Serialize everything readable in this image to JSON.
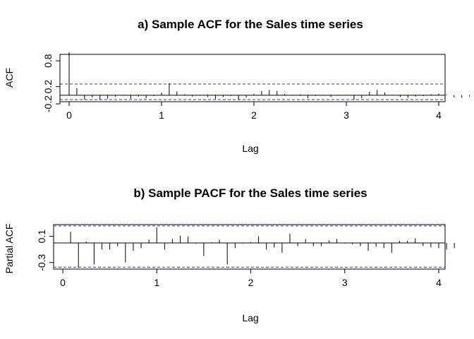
{
  "chart_data": [
    {
      "type": "bar",
      "title": "a) Sample ACF for the Sales time series",
      "xlabel": "Lag",
      "ylabel": "ACF",
      "xlim": [
        0,
        4
      ],
      "ylim": [
        -0.15,
        0.95
      ],
      "x_ticks": [
        0,
        1,
        2,
        3,
        4
      ],
      "x_tick_labels": [
        "0",
        "1",
        "2",
        "3",
        "4"
      ],
      "y_ticks": [
        -0.2,
        0.2,
        0.8
      ],
      "y_tick_labels": [
        "-0.2",
        "0.2",
        "0.8"
      ],
      "confidence_band": [
        -0.1,
        0.26
      ],
      "lag_step": 0.08333,
      "values": [
        1.0,
        0.17,
        -0.1,
        -0.05,
        -0.1,
        -0.08,
        -0.03,
        -0.01,
        -0.08,
        -0.03,
        -0.07,
        -0.02,
        0.06,
        0.28,
        0.09,
        0.02,
        -0.03,
        0.01,
        -0.04,
        -0.09,
        -0.04,
        -0.02,
        -0.1,
        -0.05,
        0.03,
        0.1,
        0.12,
        0.1,
        0.03,
        -0.01,
        -0.02,
        -0.07,
        -0.02,
        -0.01,
        -0.04,
        -0.01,
        0.01,
        -0.1,
        -0.07,
        0.08,
        0.12,
        0.07,
        0.01,
        -0.04,
        -0.06,
        -0.03,
        -0.02,
        0.02,
        0.04,
        0.02,
        -0.05,
        -0.06,
        -0.03,
        -0.01
      ]
    },
    {
      "type": "bar",
      "title": "b) Sample PACF for the Sales time series",
      "xlabel": "Lag",
      "ylabel": "Partial ACF",
      "xlim": [
        0,
        4
      ],
      "ylim": [
        -0.4,
        0.28
      ],
      "x_ticks": [
        0,
        1,
        2,
        3,
        4
      ],
      "x_tick_labels": [
        "0",
        "1",
        "2",
        "3",
        "4"
      ],
      "y_ticks": [
        -0.3,
        0.1
      ],
      "y_tick_labels": [
        "-0.3",
        "0.1"
      ],
      "confidence_band": [
        -0.37,
        0.26
      ],
      "lag_step": 0.08333,
      "values": [
        0.17,
        -0.38,
        0.02,
        -0.33,
        -0.1,
        -0.1,
        -0.05,
        -0.3,
        -0.12,
        -0.08,
        0.05,
        0.24,
        -0.1,
        0.06,
        0.11,
        0.1,
        -0.01,
        -0.2,
        0.01,
        0.05,
        -0.33,
        -0.08,
        -0.01,
        0.01,
        0.1,
        -0.1,
        -0.07,
        -0.15,
        0.14,
        -0.05,
        0.06,
        -0.05,
        -0.05,
        0.04,
        0.06,
        -0.01,
        -0.02,
        -0.05,
        -0.12,
        -0.06,
        -0.08,
        -0.15,
        0.03,
        0.03,
        0.07,
        -0.05,
        -0.07,
        -0.08,
        -0.1,
        -0.08
      ]
    }
  ]
}
